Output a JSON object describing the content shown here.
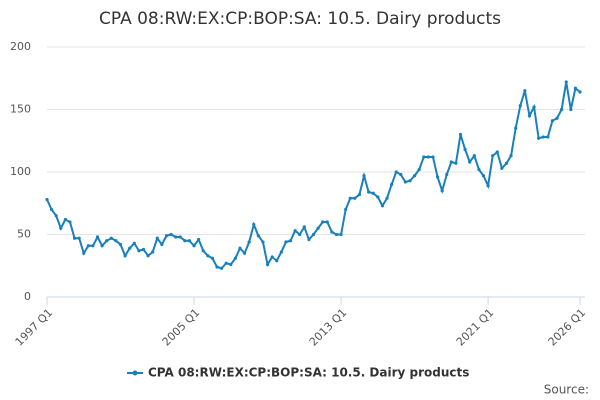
{
  "chart_data": {
    "type": "line",
    "title": "CPA 08:RW:EX:CP:BOP:SA: 10.5. Dairy products",
    "source": "Source:",
    "categories": [
      "1997 Q1",
      null,
      null,
      null,
      null,
      null,
      null,
      null,
      null,
      null,
      null,
      null,
      null,
      null,
      null,
      null,
      null,
      null,
      null,
      null,
      null,
      null,
      null,
      null,
      null,
      null,
      null,
      null,
      null,
      null,
      null,
      null,
      "2005 Q1",
      null,
      null,
      null,
      null,
      null,
      null,
      null,
      null,
      null,
      null,
      null,
      null,
      null,
      null,
      null,
      null,
      null,
      null,
      null,
      null,
      null,
      null,
      null,
      null,
      null,
      null,
      null,
      null,
      null,
      null,
      null,
      "2013 Q1",
      null,
      null,
      null,
      null,
      null,
      null,
      null,
      null,
      null,
      null,
      null,
      null,
      null,
      null,
      null,
      null,
      null,
      null,
      null,
      null,
      null,
      null,
      null,
      null,
      null,
      null,
      null,
      null,
      null,
      null,
      null,
      "2021 Q1",
      null,
      null,
      null,
      null,
      null,
      null,
      null,
      null,
      null,
      null,
      null,
      null,
      null,
      null,
      null,
      null,
      null,
      null,
      null,
      "2026 Q1"
    ],
    "series": [
      {
        "name": "CPA 08:RW:EX:CP:BOP:SA: 10.5. Dairy products",
        "color": "#1a80bb",
        "values": [
          78,
          70,
          65,
          55,
          62,
          60,
          47,
          47,
          35,
          41,
          41,
          48,
          41,
          45,
          47,
          45,
          42,
          33,
          39,
          43,
          37,
          38,
          33,
          36,
          47,
          42,
          49,
          50,
          48,
          48,
          45,
          45,
          41,
          46,
          37,
          33,
          31,
          24,
          23,
          27,
          26,
          31,
          39,
          35,
          44,
          58,
          49,
          44,
          26,
          32,
          29,
          36,
          44,
          45,
          53,
          50,
          56,
          46,
          50,
          55,
          60,
          60,
          52,
          50,
          50,
          70,
          79,
          79,
          82,
          97,
          84,
          83,
          80,
          73,
          79,
          90,
          100,
          98,
          92,
          93,
          97,
          102,
          112,
          112,
          112,
          96,
          85,
          98,
          108,
          107,
          130,
          118,
          108,
          113,
          102,
          97,
          89,
          113,
          116,
          103,
          107,
          113,
          135,
          153,
          165,
          145,
          152,
          127,
          128,
          128,
          141,
          143,
          150,
          172,
          150,
          167,
          164
        ]
      }
    ],
    "ylim": [
      0,
      200
    ],
    "yticks": [
      0,
      50,
      100,
      150,
      200
    ],
    "grid": true,
    "legend": "bottom"
  }
}
